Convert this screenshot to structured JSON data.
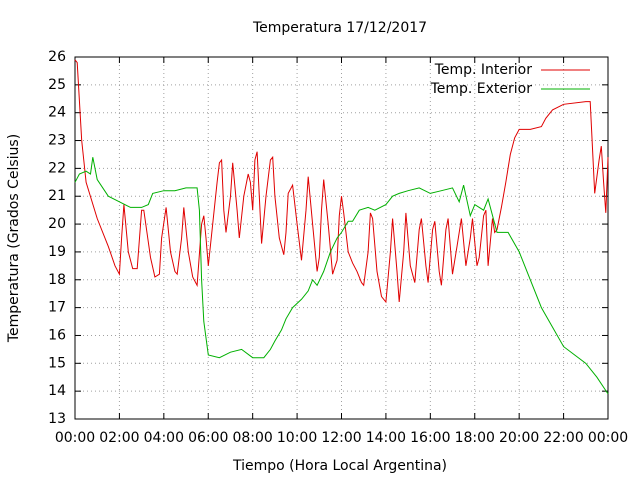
{
  "chart_data": {
    "type": "line",
    "title": "Temperatura 17/12/2017",
    "x_label": "Tiempo (Hora Local Argentina)",
    "y_label": "Temperatura (Grados Celsius)",
    "xlim": [
      0,
      24
    ],
    "ylim": [
      13,
      26
    ],
    "xticks": [
      {
        "value": 0,
        "label": "00:00"
      },
      {
        "value": 2,
        "label": "02:00"
      },
      {
        "value": 4,
        "label": "04:00"
      },
      {
        "value": 6,
        "label": "06:00"
      },
      {
        "value": 8,
        "label": "08:00"
      },
      {
        "value": 10,
        "label": "10:00"
      },
      {
        "value": 12,
        "label": "12:00"
      },
      {
        "value": 14,
        "label": "14:00"
      },
      {
        "value": 16,
        "label": "16:00"
      },
      {
        "value": 18,
        "label": "18:00"
      },
      {
        "value": 20,
        "label": "20:00"
      },
      {
        "value": 22,
        "label": "22:00"
      },
      {
        "value": 24,
        "label": "00:00"
      }
    ],
    "yticks": [
      13,
      14,
      15,
      16,
      17,
      18,
      19,
      20,
      21,
      22,
      23,
      24,
      25,
      26
    ],
    "grid": true,
    "legend": "top-right",
    "series": [
      {
        "name": "Temp. Interior",
        "color": "#e00000",
        "x": [
          0,
          0.1,
          0.3,
          0.5,
          1,
          1.5,
          1.8,
          2,
          2.1,
          2.2,
          2.4,
          2.6,
          2.8,
          3,
          3.1,
          3.4,
          3.6,
          3.8,
          3.9,
          4.1,
          4.3,
          4.5,
          4.6,
          4.8,
          4.9,
          5.1,
          5.3,
          5.5,
          5.7,
          5.8,
          5.9,
          6,
          6.2,
          6.4,
          6.5,
          6.6,
          6.7,
          6.8,
          7,
          7.1,
          7.3,
          7.4,
          7.6,
          7.8,
          7.9,
          8,
          8.1,
          8.2,
          8.3,
          8.4,
          8.6,
          8.8,
          8.9,
          9,
          9.2,
          9.4,
          9.5,
          9.6,
          9.8,
          10,
          10.2,
          10.4,
          10.5,
          10.7,
          10.9,
          11,
          11.1,
          11.2,
          11.4,
          11.6,
          11.8,
          11.9,
          12,
          12.1,
          12.3,
          12.5,
          12.7,
          12.9,
          13,
          13.2,
          13.3,
          13.4,
          13.6,
          13.8,
          14,
          14.2,
          14.3,
          14.5,
          14.6,
          14.8,
          14.9,
          15.1,
          15.3,
          15.5,
          15.6,
          15.8,
          15.9,
          16.1,
          16.2,
          16.4,
          16.5,
          16.7,
          16.8,
          17,
          17.2,
          17.4,
          17.6,
          17.8,
          17.9,
          18.1,
          18.2,
          18.4,
          18.5,
          18.6,
          18.8,
          18.9,
          19,
          19.2,
          19.4,
          19.6,
          19.8,
          20,
          20.5,
          21,
          21.2,
          21.5,
          22,
          23,
          23.2,
          23.4,
          23.6,
          23.7,
          23.8,
          23.9,
          24
        ],
        "values": [
          25.9,
          25.8,
          23,
          21.5,
          20.2,
          19.2,
          18.5,
          18.2,
          19.5,
          20.7,
          19,
          18.4,
          18.4,
          20.5,
          20.5,
          18.8,
          18.1,
          18.2,
          19.5,
          20.6,
          19,
          18.3,
          18.2,
          19.5,
          20.6,
          19,
          18.1,
          17.8,
          20,
          20.3,
          19.5,
          18.5,
          20,
          21.5,
          22.2,
          22.3,
          20.5,
          19.7,
          21,
          22.2,
          20.5,
          19.5,
          21,
          21.8,
          21.5,
          20.5,
          22.3,
          22.6,
          21,
          19.3,
          21,
          22.3,
          22.4,
          21,
          19.5,
          18.9,
          19.7,
          21.1,
          21.4,
          20,
          18.7,
          20.5,
          21.7,
          20,
          18.3,
          18.8,
          20.5,
          21.6,
          20,
          18.2,
          18.7,
          20.3,
          21,
          20.4,
          19,
          18.6,
          18.3,
          17.9,
          17.8,
          19,
          20.4,
          20.2,
          18.3,
          17.4,
          17.2,
          19,
          20.2,
          18.3,
          17.2,
          19,
          20.4,
          18.5,
          17.9,
          19.8,
          20.2,
          18.5,
          17.9,
          19.8,
          20.1,
          18.3,
          17.8,
          19.8,
          20.2,
          18.2,
          19.2,
          20.2,
          18.5,
          19.5,
          20.2,
          18.5,
          18.8,
          20.3,
          20.5,
          18.5,
          20.2,
          19.7,
          19.8,
          20.6,
          21.5,
          22.5,
          23.1,
          23.4,
          23.4,
          23.5,
          23.8,
          24.1,
          24.3,
          24.4,
          24.4,
          21.1,
          22.3,
          22.8,
          21.5,
          20.4,
          22.4
        ]
      },
      {
        "name": "Temp. Exterior",
        "color": "#00b000",
        "x": [
          0,
          0.2,
          0.5,
          0.7,
          0.8,
          1,
          1.5,
          2,
          2.5,
          3,
          3.3,
          3.5,
          4,
          4.5,
          5,
          5.5,
          5.6,
          5.7,
          5.8,
          6,
          6.5,
          7,
          7.5,
          8,
          8.5,
          8.8,
          9,
          9.3,
          9.5,
          9.8,
          10.2,
          10.5,
          10.7,
          10.9,
          11.2,
          11.5,
          11.8,
          12,
          12.3,
          12.5,
          12.8,
          13.2,
          13.5,
          14,
          14.3,
          14.6,
          15,
          15.5,
          16,
          16.5,
          17,
          17.3,
          17.5,
          17.8,
          18,
          18.4,
          18.6,
          19,
          19.5,
          20,
          20.5,
          21,
          21.5,
          22,
          22.5,
          23,
          23.5,
          24
        ],
        "values": [
          21.5,
          21.8,
          21.9,
          21.8,
          22.4,
          21.6,
          21,
          20.8,
          20.6,
          20.6,
          20.7,
          21.1,
          21.2,
          21.2,
          21.3,
          21.3,
          20.5,
          18,
          16.5,
          15.3,
          15.2,
          15.4,
          15.5,
          15.2,
          15.2,
          15.5,
          15.8,
          16.2,
          16.6,
          17,
          17.3,
          17.6,
          18,
          17.8,
          18.3,
          19,
          19.5,
          19.7,
          20.1,
          20.1,
          20.5,
          20.6,
          20.5,
          20.7,
          21,
          21.1,
          21.2,
          21.3,
          21.1,
          21.2,
          21.3,
          20.8,
          21.4,
          20.3,
          20.7,
          20.5,
          20.9,
          19.7,
          19.7,
          19,
          18,
          17,
          16.3,
          15.6,
          15.3,
          15,
          14.5,
          13.9
        ]
      }
    ]
  }
}
